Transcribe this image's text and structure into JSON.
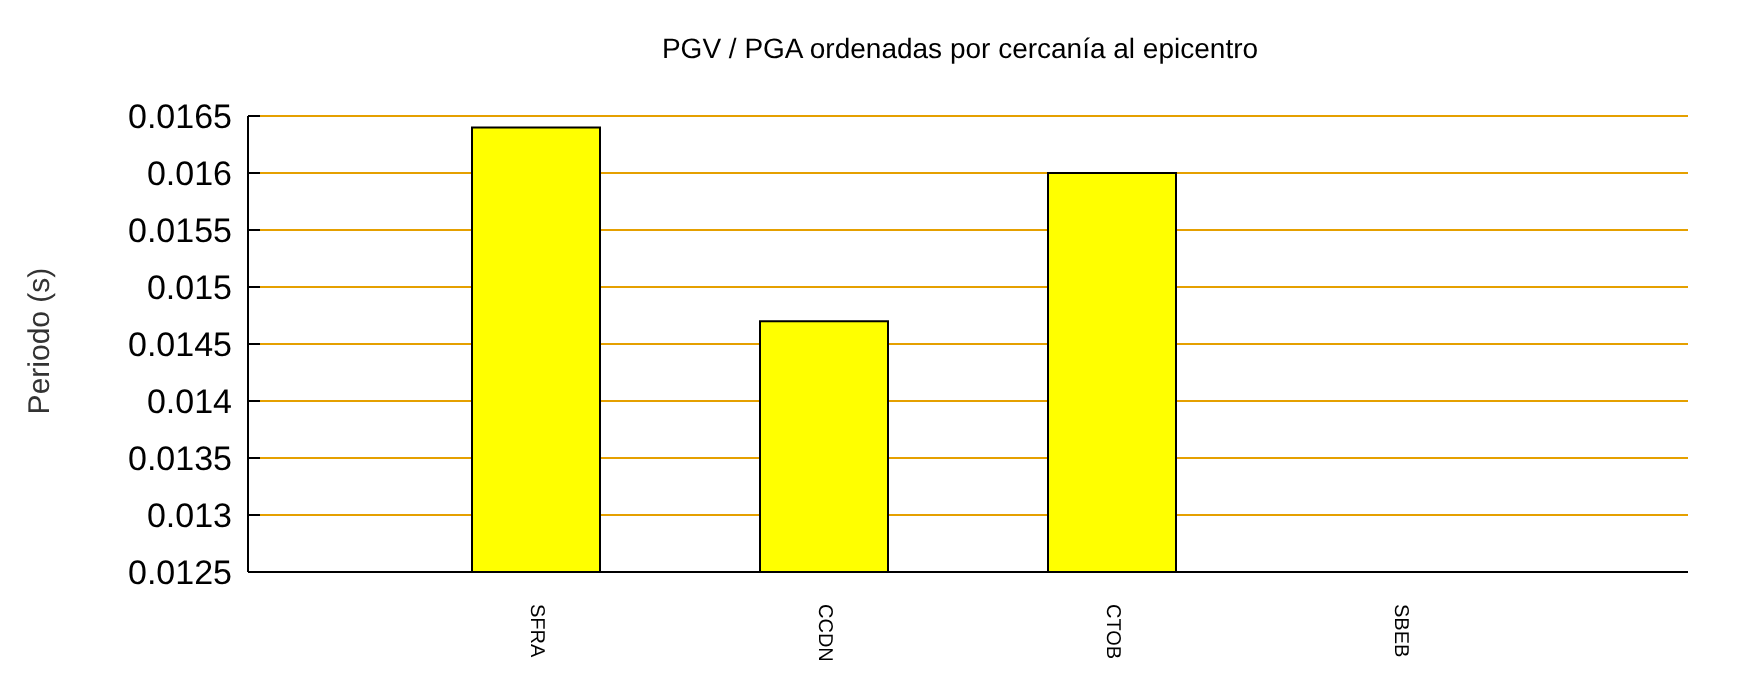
{
  "chart_data": {
    "type": "bar",
    "title": "PGV / PGA ordenadas por cercanía al epicentro",
    "ylabel": "Periodo (s)",
    "categories": [
      "SFRA",
      "CCDN",
      "CTOB",
      "SBEB"
    ],
    "values": [
      0.0164,
      0.0147,
      0.016,
      null
    ],
    "color": "#ffff00",
    "ylim": [
      0.0125,
      0.0165
    ],
    "yticks": [
      0.0125,
      0.013,
      0.0135,
      0.014,
      0.0145,
      0.015,
      0.0155,
      0.016,
      0.0165
    ],
    "grid": "y",
    "legend": false
  }
}
